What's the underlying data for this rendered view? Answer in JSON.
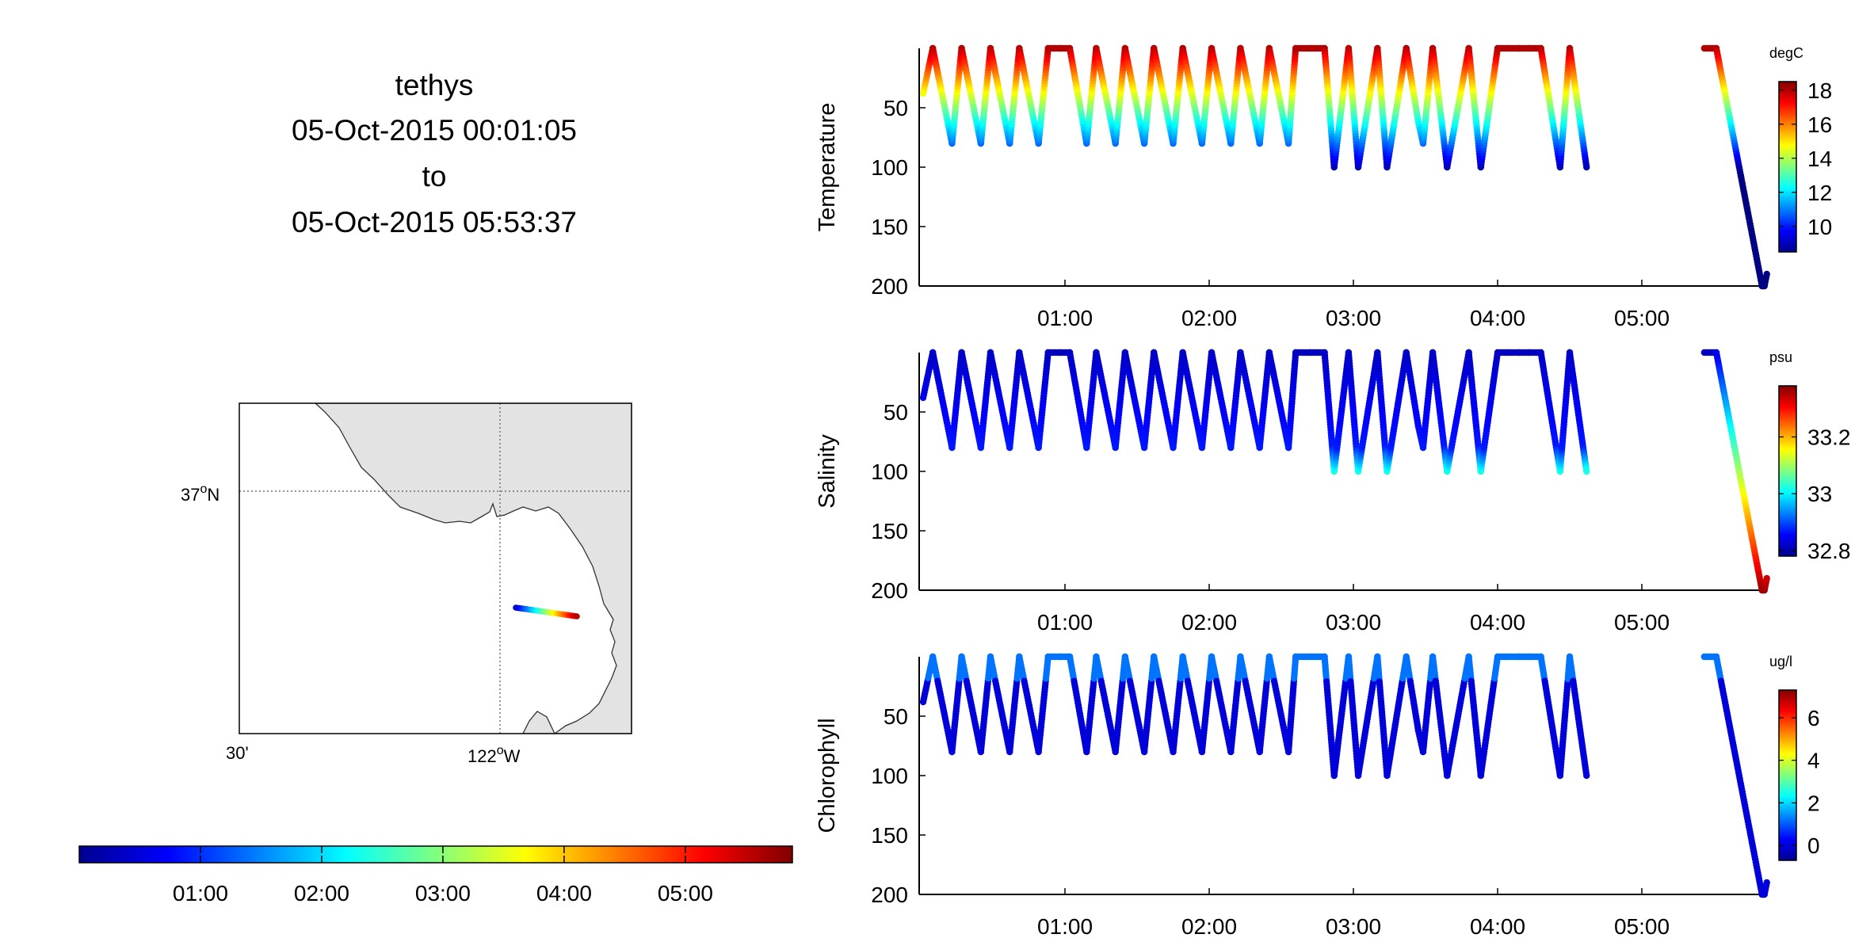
{
  "header": {
    "platform": "tethys",
    "start": "05-Oct-2015 00:01:05",
    "to": "to",
    "end": "05-Oct-2015 05:53:37"
  },
  "map": {
    "lat_label": "37",
    "lat_suffix": "N",
    "lon_label_left": "30'",
    "lon_label_main": "122",
    "lon_suffix": "W",
    "land_color": "#e3e3e3"
  },
  "time_colorbar": {
    "ticks": [
      "01:00",
      "02:00",
      "03:00",
      "04:00",
      "05:00"
    ],
    "colormap": "jet"
  },
  "chart_data": [
    {
      "type": "scatter",
      "title": "",
      "ylabel": "Temperature",
      "xlabel": "",
      "x_ticks": [
        "01:00",
        "02:00",
        "03:00",
        "04:00",
        "05:00"
      ],
      "y_ticks": [
        "50",
        "100",
        "150",
        "200"
      ],
      "ylim": [
        0,
        200
      ],
      "y_reversed": true,
      "colorbar": {
        "unit": "degC",
        "ticks": [
          "10",
          "12",
          "14",
          "16",
          "18"
        ],
        "range": [
          8.5,
          18.5
        ]
      },
      "profile_x": [
        "00:01",
        "00:05",
        "00:13",
        "00:17",
        "00:25",
        "00:29",
        "00:37",
        "00:41",
        "00:49",
        "00:53",
        "00:58",
        "01:02",
        "01:09",
        "01:13",
        "01:21",
        "01:25",
        "01:33",
        "01:37",
        "01:45",
        "01:49",
        "01:57",
        "02:01",
        "02:09",
        "02:13",
        "02:21",
        "02:25",
        "02:33",
        "02:36",
        "02:42",
        "02:48",
        "02:52",
        "02:58",
        "03:02",
        "03:10",
        "03:14",
        "03:22",
        "03:27",
        "03:29",
        "03:33",
        "03:39",
        "03:48",
        "03:53",
        "04:00",
        "04:04",
        "04:09",
        "04:13",
        "04:18",
        "04:26",
        "04:30",
        "04:37",
        "05:26",
        "05:31",
        "05:50",
        "05:51",
        "05:52"
      ],
      "profile_depth": [
        38,
        0,
        80,
        0,
        80,
        0,
        80,
        0,
        80,
        0,
        0,
        0,
        80,
        0,
        80,
        0,
        80,
        0,
        80,
        0,
        80,
        0,
        80,
        0,
        80,
        0,
        80,
        0,
        0,
        0,
        100,
        0,
        100,
        0,
        100,
        0,
        62,
        80,
        0,
        100,
        0,
        100,
        0,
        0,
        0,
        0,
        0,
        100,
        0,
        100,
        0,
        0,
        200,
        200,
        190
      ]
    },
    {
      "type": "scatter",
      "title": "",
      "ylabel": "Salinity",
      "xlabel": "",
      "x_ticks": [
        "01:00",
        "02:00",
        "03:00",
        "04:00",
        "05:00"
      ],
      "y_ticks": [
        "50",
        "100",
        "150",
        "200"
      ],
      "ylim": [
        0,
        200
      ],
      "y_reversed": true,
      "colorbar": {
        "unit": "psu",
        "ticks": [
          "32.8",
          "33",
          "33.2"
        ],
        "range": [
          32.78,
          33.38
        ]
      },
      "profile_x": [
        "00:01",
        "00:05",
        "00:13",
        "00:17",
        "00:25",
        "00:29",
        "00:37",
        "00:41",
        "00:49",
        "00:53",
        "00:58",
        "01:02",
        "01:09",
        "01:13",
        "01:21",
        "01:25",
        "01:33",
        "01:37",
        "01:45",
        "01:49",
        "01:57",
        "02:01",
        "02:09",
        "02:13",
        "02:21",
        "02:25",
        "02:33",
        "02:36",
        "02:42",
        "02:48",
        "02:52",
        "02:58",
        "03:02",
        "03:10",
        "03:14",
        "03:22",
        "03:27",
        "03:29",
        "03:33",
        "03:39",
        "03:48",
        "03:53",
        "04:00",
        "04:04",
        "04:09",
        "04:13",
        "04:18",
        "04:26",
        "04:30",
        "04:37",
        "05:26",
        "05:31",
        "05:50",
        "05:51",
        "05:52"
      ],
      "profile_depth": [
        38,
        0,
        80,
        0,
        80,
        0,
        80,
        0,
        80,
        0,
        0,
        0,
        80,
        0,
        80,
        0,
        80,
        0,
        80,
        0,
        80,
        0,
        80,
        0,
        80,
        0,
        80,
        0,
        0,
        0,
        100,
        0,
        100,
        0,
        100,
        0,
        62,
        80,
        0,
        100,
        0,
        100,
        0,
        0,
        0,
        0,
        0,
        100,
        0,
        100,
        0,
        0,
        200,
        200,
        190
      ]
    },
    {
      "type": "scatter",
      "title": "",
      "ylabel": "Chlorophyll",
      "xlabel": "",
      "x_ticks": [
        "01:00",
        "02:00",
        "03:00",
        "04:00",
        "05:00"
      ],
      "y_ticks": [
        "50",
        "100",
        "150",
        "200"
      ],
      "ylim": [
        0,
        200
      ],
      "y_reversed": true,
      "colorbar": {
        "unit": "ug/l",
        "ticks": [
          "0",
          "2",
          "4",
          "6"
        ],
        "range": [
          -0.7,
          7.3
        ]
      },
      "profile_x": [
        "00:01",
        "00:05",
        "00:13",
        "00:17",
        "00:25",
        "00:29",
        "00:37",
        "00:41",
        "00:49",
        "00:53",
        "00:58",
        "01:02",
        "01:09",
        "01:13",
        "01:21",
        "01:25",
        "01:33",
        "01:37",
        "01:45",
        "01:49",
        "01:57",
        "02:01",
        "02:09",
        "02:13",
        "02:21",
        "02:25",
        "02:33",
        "02:36",
        "02:42",
        "02:48",
        "02:52",
        "02:58",
        "03:02",
        "03:10",
        "03:14",
        "03:22",
        "03:27",
        "03:29",
        "03:33",
        "03:39",
        "03:48",
        "03:53",
        "04:00",
        "04:04",
        "04:09",
        "04:13",
        "04:18",
        "04:26",
        "04:30",
        "04:37",
        "05:26",
        "05:31",
        "05:50",
        "05:51",
        "05:52"
      ],
      "profile_depth": [
        38,
        0,
        80,
        0,
        80,
        0,
        80,
        0,
        80,
        0,
        0,
        0,
        80,
        0,
        80,
        0,
        80,
        0,
        80,
        0,
        80,
        0,
        80,
        0,
        80,
        0,
        80,
        0,
        0,
        0,
        100,
        0,
        100,
        0,
        100,
        0,
        62,
        80,
        0,
        100,
        0,
        100,
        0,
        0,
        0,
        0,
        0,
        100,
        0,
        100,
        0,
        0,
        200,
        200,
        190
      ]
    }
  ]
}
